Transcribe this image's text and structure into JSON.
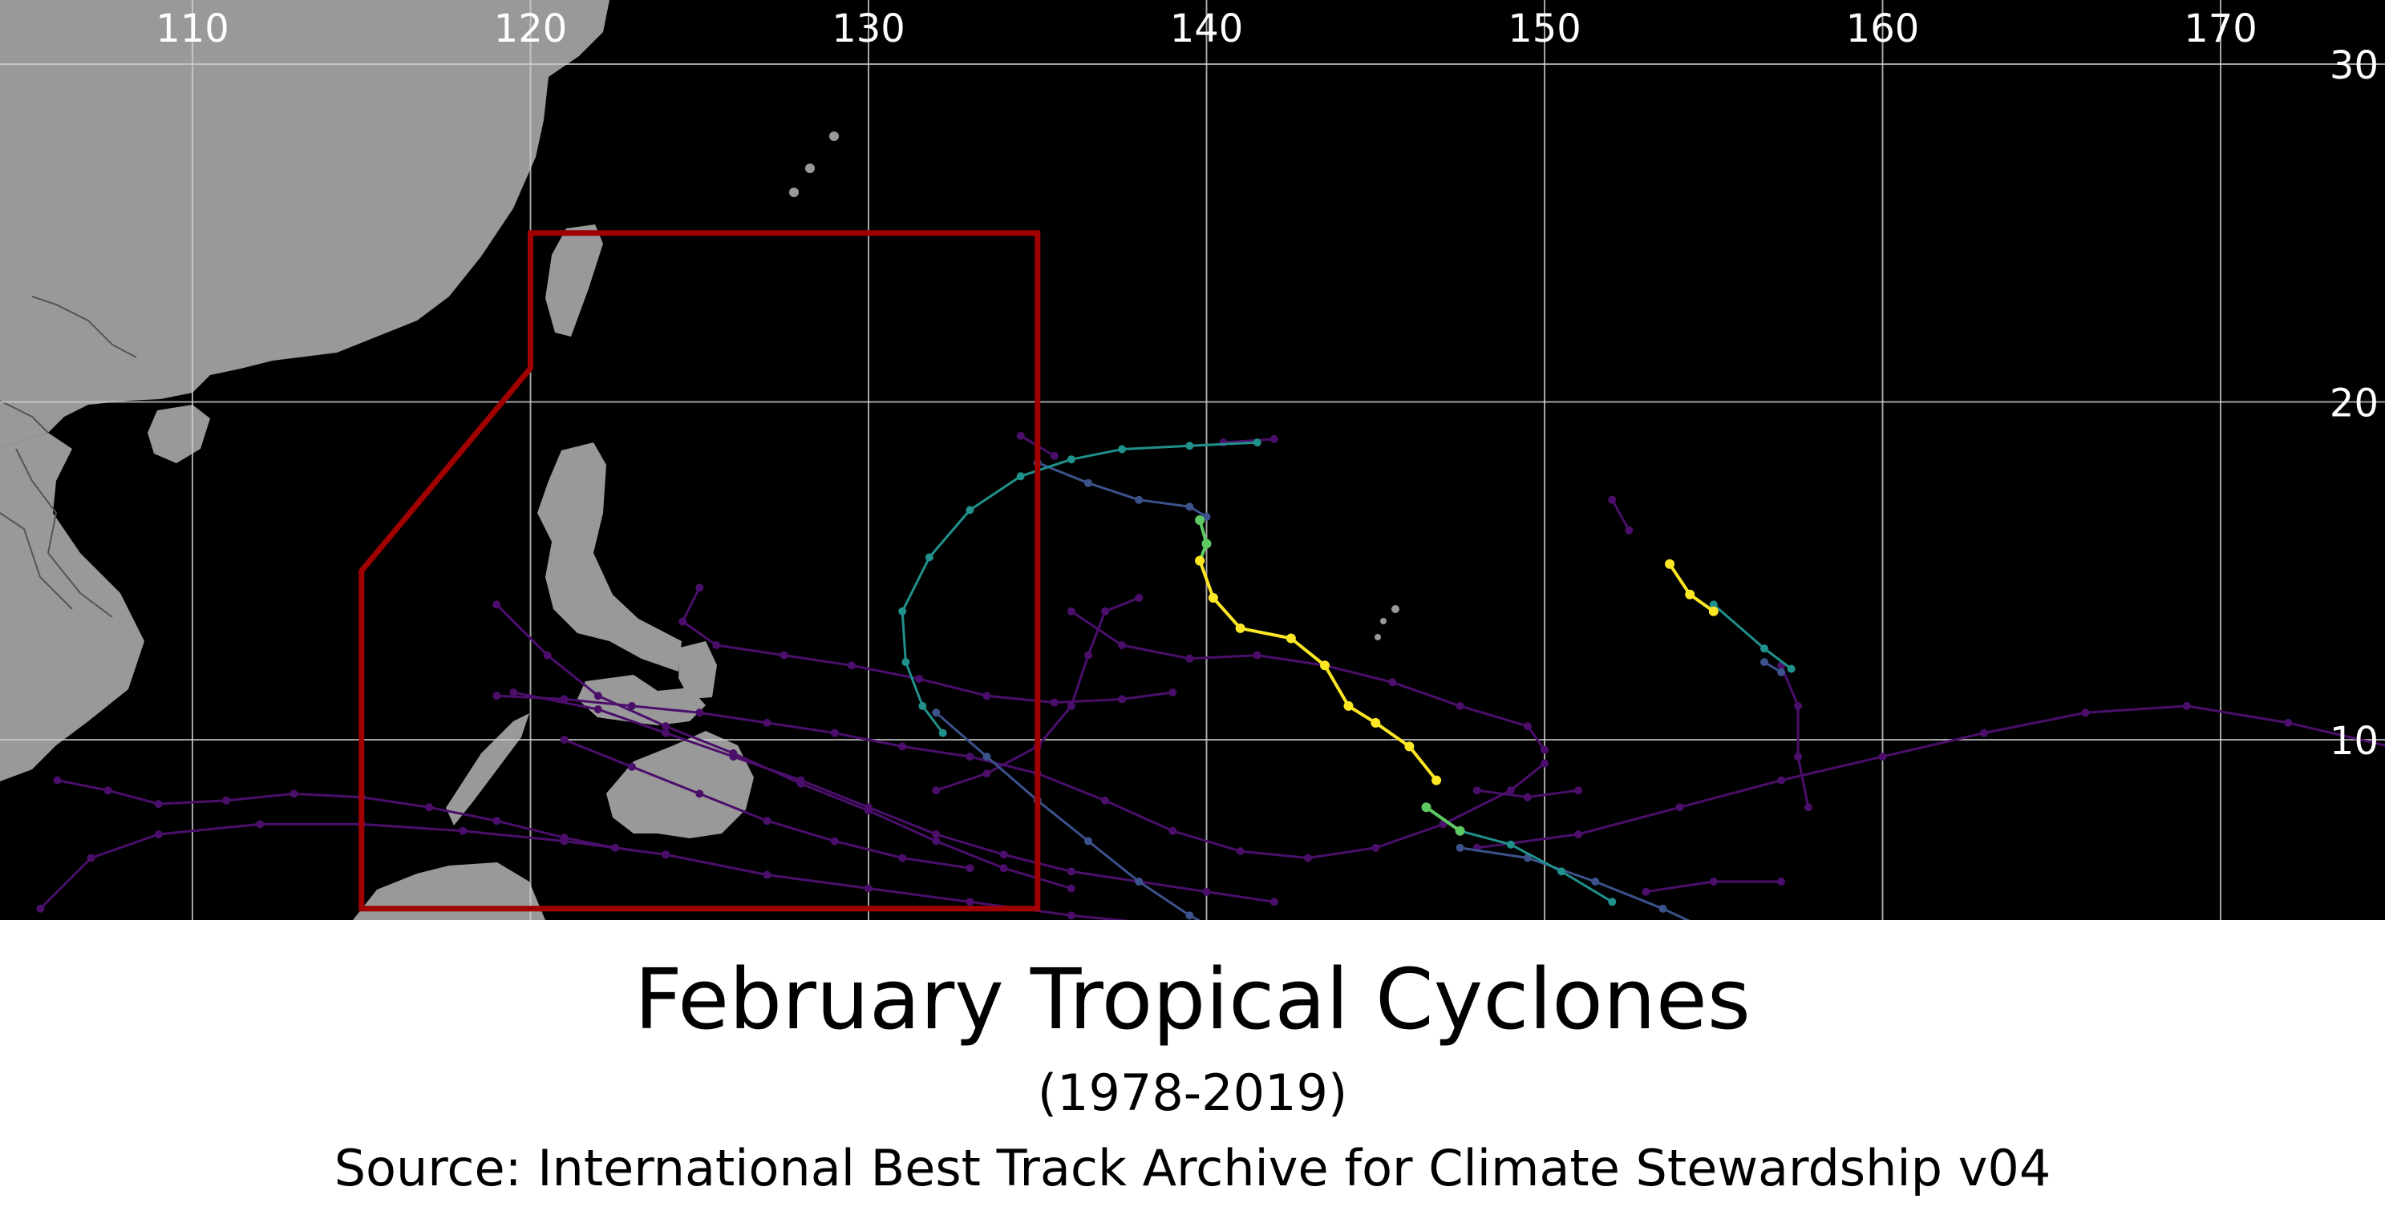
{
  "title": "February Tropical Cyclones",
  "subtitle": "(1978-2019)",
  "source": "Source: International Best Track Archive for Climate Stewardship v04",
  "map": {
    "longitude_ticks": [
      "110",
      "120",
      "130",
      "140",
      "150",
      "160",
      "170"
    ],
    "latitude_ticks": [
      "30",
      "20",
      "10"
    ],
    "colors": {
      "ocean": "#000000",
      "land": "#999999",
      "borders": "#555555",
      "gridlines": "#cfcfcf",
      "region_box": "#a00000",
      "weak_track": "#4b0f6b",
      "intensity_scale": [
        "#440154",
        "#3b528b",
        "#21918c",
        "#5ec962",
        "#fde725"
      ]
    },
    "region_box_lonlat": [
      [
        120,
        25
      ],
      [
        135,
        25
      ],
      [
        135,
        5
      ],
      [
        115,
        5
      ],
      [
        115,
        15
      ],
      [
        120,
        21
      ]
    ],
    "tracks_lonlat": [
      {
        "intensity": 0,
        "points": [
          [
            106,
            8.8
          ],
          [
            107.5,
            8.5
          ],
          [
            109,
            8.1
          ],
          [
            111,
            8.2
          ],
          [
            113,
            8.4
          ],
          [
            115,
            8.3
          ],
          [
            117,
            8.0
          ],
          [
            119,
            7.6
          ],
          [
            121,
            7.1
          ],
          [
            122.5,
            6.8
          ],
          [
            124,
            6.6
          ]
        ]
      },
      {
        "intensity": 0,
        "points": [
          [
            105.5,
            5.0
          ],
          [
            107,
            6.5
          ],
          [
            109,
            7.2
          ],
          [
            112,
            7.5
          ],
          [
            115,
            7.5
          ],
          [
            118,
            7.3
          ],
          [
            121,
            7.0
          ],
          [
            124,
            6.6
          ],
          [
            127,
            6.0
          ],
          [
            130,
            5.6
          ],
          [
            133,
            5.2
          ],
          [
            136,
            4.8
          ],
          [
            139,
            4.5
          ],
          [
            141,
            4.3
          ]
        ]
      },
      {
        "intensity": 0,
        "points": [
          [
            119,
            11.3
          ],
          [
            121,
            11.2
          ],
          [
            123,
            11.0
          ],
          [
            125,
            10.8
          ],
          [
            127,
            10.5
          ],
          [
            129,
            10.2
          ],
          [
            131,
            9.8
          ],
          [
            133,
            9.5
          ],
          [
            135,
            9.0
          ],
          [
            137,
            8.2
          ],
          [
            139,
            7.3
          ],
          [
            141,
            6.7
          ],
          [
            143,
            6.5
          ],
          [
            145,
            6.8
          ],
          [
            147,
            7.5
          ],
          [
            149,
            8.5
          ],
          [
            150,
            9.3
          ]
        ]
      },
      {
        "intensity": 0,
        "points": [
          [
            119.5,
            11.4
          ],
          [
            122,
            10.9
          ],
          [
            124,
            10.2
          ],
          [
            126,
            9.5
          ],
          [
            128,
            8.8
          ],
          [
            130,
            8.0
          ],
          [
            132,
            7.2
          ],
          [
            134,
            6.6
          ],
          [
            136,
            6.1
          ],
          [
            138,
            5.8
          ],
          [
            140,
            5.5
          ],
          [
            142,
            5.2
          ]
        ]
      },
      {
        "intensity": 0,
        "points": [
          [
            119,
            14.0
          ],
          [
            120.5,
            12.5
          ],
          [
            122,
            11.3
          ],
          [
            124,
            10.4
          ],
          [
            126,
            9.6
          ],
          [
            128,
            8.7
          ],
          [
            130,
            7.9
          ],
          [
            132,
            7.0
          ],
          [
            134,
            6.2
          ],
          [
            136,
            5.6
          ]
        ]
      },
      {
        "intensity": 0,
        "points": [
          [
            121,
            10.0
          ],
          [
            123,
            9.2
          ],
          [
            125,
            8.4
          ],
          [
            127,
            7.6
          ],
          [
            129,
            7.0
          ],
          [
            131,
            6.5
          ],
          [
            133,
            6.2
          ]
        ]
      },
      {
        "intensity": 0,
        "points": [
          [
            125,
            14.5
          ],
          [
            124.5,
            13.5
          ],
          [
            125.5,
            12.8
          ],
          [
            127.5,
            12.5
          ],
          [
            129.5,
            12.2
          ],
          [
            131.5,
            11.8
          ],
          [
            133.5,
            11.3
          ],
          [
            135.5,
            11.1
          ],
          [
            137.5,
            11.2
          ],
          [
            139,
            11.4
          ]
        ]
      },
      {
        "intensity": 0,
        "points": [
          [
            132,
            8.5
          ],
          [
            133.5,
            9.0
          ],
          [
            135,
            9.8
          ],
          [
            136,
            11.0
          ],
          [
            136.5,
            12.5
          ],
          [
            137,
            13.8
          ],
          [
            138,
            14.2
          ]
        ]
      },
      {
        "intensity": 0,
        "points": [
          [
            136,
            13.8
          ],
          [
            137.5,
            12.8
          ],
          [
            139.5,
            12.4
          ],
          [
            141.5,
            12.5
          ],
          [
            143.5,
            12.2
          ],
          [
            145.5,
            11.7
          ],
          [
            147.5,
            11.0
          ],
          [
            149.5,
            10.4
          ],
          [
            150,
            9.7
          ]
        ]
      },
      {
        "intensity": 0,
        "points": [
          [
            148,
            6.8
          ],
          [
            151,
            7.2
          ],
          [
            154,
            8.0
          ],
          [
            157,
            8.8
          ],
          [
            160,
            9.5
          ],
          [
            163,
            10.2
          ],
          [
            166,
            10.8
          ],
          [
            169,
            11.0
          ],
          [
            172,
            10.5
          ],
          [
            175,
            9.8
          ]
        ]
      },
      {
        "intensity": 0,
        "points": [
          [
            153,
            5.5
          ],
          [
            155,
            5.8
          ],
          [
            157,
            5.8
          ]
        ]
      },
      {
        "intensity": 0,
        "points": [
          [
            148,
            8.5
          ],
          [
            149.5,
            8.3
          ],
          [
            151,
            8.5
          ]
        ]
      },
      {
        "intensity": 0,
        "points": [
          [
            157,
            12.2
          ],
          [
            157.5,
            11.0
          ],
          [
            157.5,
            9.5
          ],
          [
            157.8,
            8.0
          ]
        ]
      },
      {
        "intensity": 0,
        "points": [
          [
            152,
            17.1
          ],
          [
            152.5,
            16.2
          ]
        ]
      },
      {
        "intensity": 0,
        "points": [
          [
            140.5,
            18.8
          ],
          [
            142,
            18.9
          ]
        ]
      },
      {
        "intensity": 0,
        "points": [
          [
            134.5,
            19.0
          ],
          [
            135.5,
            18.4
          ]
        ]
      },
      {
        "intensity": 1,
        "points": [
          [
            135,
            18.2
          ],
          [
            136.5,
            17.6
          ],
          [
            138,
            17.1
          ],
          [
            139.5,
            16.9
          ],
          [
            140,
            16.6
          ]
        ]
      },
      {
        "intensity": 1,
        "points": [
          [
            132,
            10.8
          ],
          [
            133.5,
            9.5
          ],
          [
            135,
            8.2
          ],
          [
            136.5,
            7.0
          ],
          [
            138,
            5.8
          ],
          [
            139.5,
            4.8
          ],
          [
            141,
            4.0
          ]
        ]
      },
      {
        "intensity": 1,
        "points": [
          [
            147.5,
            6.8
          ],
          [
            149.5,
            6.5
          ],
          [
            151.5,
            5.8
          ],
          [
            153.5,
            5.0
          ],
          [
            155,
            4.3
          ]
        ]
      },
      {
        "intensity": 1,
        "points": [
          [
            156.5,
            12.3
          ],
          [
            157,
            12.0
          ]
        ]
      },
      {
        "intensity": 2,
        "points": [
          [
            141.5,
            18.8
          ],
          [
            139.5,
            18.7
          ],
          [
            137.5,
            18.6
          ],
          [
            136,
            18.3
          ],
          [
            134.5,
            17.8
          ],
          [
            133,
            16.8
          ],
          [
            131.8,
            15.4
          ],
          [
            131.0,
            13.8
          ],
          [
            131.1,
            12.3
          ],
          [
            131.6,
            11.0
          ],
          [
            132.2,
            10.2
          ]
        ]
      },
      {
        "intensity": 2,
        "points": [
          [
            147.5,
            7.3
          ],
          [
            149,
            6.9
          ],
          [
            150.5,
            6.1
          ],
          [
            152,
            5.2
          ]
        ]
      },
      {
        "intensity": 2,
        "points": [
          [
            155,
            14.0
          ],
          [
            156.5,
            12.7
          ],
          [
            157.3,
            12.1
          ]
        ]
      },
      {
        "intensity": 3,
        "points": [
          [
            139.8,
            16.5
          ],
          [
            140,
            15.8
          ],
          [
            139.8,
            15.3
          ]
        ]
      },
      {
        "intensity": 3,
        "points": [
          [
            146.5,
            8.0
          ],
          [
            147.5,
            7.3
          ]
        ]
      },
      {
        "intensity": 4,
        "points": [
          [
            139.8,
            15.3
          ],
          [
            140.2,
            14.2
          ],
          [
            141,
            13.3
          ],
          [
            142.5,
            13.0
          ],
          [
            143.5,
            12.2
          ],
          [
            144.2,
            11.0
          ],
          [
            145,
            10.5
          ],
          [
            146,
            9.8
          ],
          [
            146.8,
            8.8
          ]
        ]
      },
      {
        "intensity": 4,
        "points": [
          [
            153.7,
            15.2
          ],
          [
            154.3,
            14.3
          ],
          [
            155,
            13.8
          ]
        ]
      }
    ]
  }
}
